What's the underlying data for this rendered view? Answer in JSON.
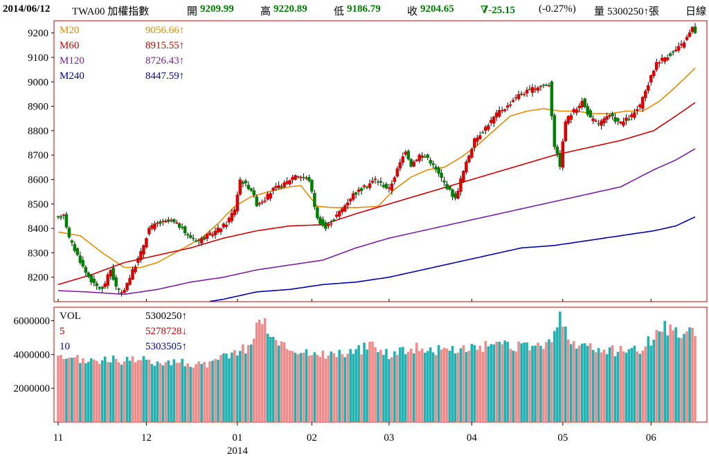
{
  "header": {
    "date": "2014/06/12",
    "symbol": "TWA00 加權指數",
    "open_label": "開",
    "open_value": "9209.99",
    "high_label": "高",
    "high_value": "9220.89",
    "low_label": "低",
    "low_value": "9186.79",
    "close_label": "收",
    "close_value": "9204.65",
    "change": "∇-25.15",
    "change_pct": "(-0.27%)",
    "volume_label": "量",
    "volume_value": "5300250↑張",
    "period": "日線"
  },
  "legend_price": [
    {
      "name": "M20",
      "value": "9056.66↑",
      "color": "#e68a00"
    },
    {
      "name": "M60",
      "value": "8915.55↑",
      "color": "#cc0000"
    },
    {
      "name": "M120",
      "value": "8726.43↑",
      "color": "#7a1fa2"
    },
    {
      "name": "M240",
      "value": "8447.59↑",
      "color": "#0000aa"
    }
  ],
  "legend_volume": [
    {
      "name": "VOL",
      "value": "5300250↑",
      "color": "#000000"
    },
    {
      "name": "5",
      "value": "5278728↓",
      "color": "#cc0000"
    },
    {
      "name": "10",
      "value": "5303505↑",
      "color": "#0000aa"
    }
  ],
  "chart_data": {
    "type": "candlestick",
    "price_axis": {
      "min": 8100,
      "max": 9250,
      "ticks": [
        "9200",
        "9100",
        "9000",
        "8900",
        "8800",
        "8700",
        "8600",
        "8500",
        "8400",
        "8300",
        "8200"
      ]
    },
    "volume_axis": {
      "min": 0,
      "max": 6800000,
      "ticks": [
        "6000000",
        "4000000",
        "2000000"
      ]
    },
    "x_ticks": [
      "11",
      "12",
      "01",
      "02",
      "03",
      "04",
      "05",
      "06"
    ],
    "x_year": "2014",
    "x_tick_index": [
      0,
      32,
      65,
      92,
      120,
      150,
      183,
      215
    ],
    "close_anchors": [
      [
        0,
        8440
      ],
      [
        2,
        8460
      ],
      [
        4,
        8360
      ],
      [
        7,
        8290
      ],
      [
        10,
        8220
      ],
      [
        13,
        8170
      ],
      [
        16,
        8150
      ],
      [
        19,
        8230
      ],
      [
        21,
        8160
      ],
      [
        23,
        8130
      ],
      [
        26,
        8200
      ],
      [
        30,
        8300
      ],
      [
        33,
        8400
      ],
      [
        36,
        8420
      ],
      [
        41,
        8430
      ],
      [
        44,
        8410
      ],
      [
        47,
        8370
      ],
      [
        51,
        8350
      ],
      [
        56,
        8380
      ],
      [
        61,
        8420
      ],
      [
        64,
        8480
      ],
      [
        66,
        8600
      ],
      [
        70,
        8560
      ],
      [
        72,
        8500
      ],
      [
        75,
        8520
      ],
      [
        78,
        8560
      ],
      [
        82,
        8580
      ],
      [
        86,
        8620
      ],
      [
        91,
        8600
      ],
      [
        94,
        8440
      ],
      [
        97,
        8400
      ],
      [
        100,
        8440
      ],
      [
        103,
        8480
      ],
      [
        107,
        8540
      ],
      [
        110,
        8560
      ],
      [
        115,
        8600
      ],
      [
        120,
        8560
      ],
      [
        123,
        8640
      ],
      [
        126,
        8720
      ],
      [
        128,
        8660
      ],
      [
        131,
        8700
      ],
      [
        134,
        8690
      ],
      [
        137,
        8640
      ],
      [
        141,
        8570
      ],
      [
        144,
        8520
      ],
      [
        146,
        8600
      ],
      [
        149,
        8700
      ],
      [
        151,
        8760
      ],
      [
        154,
        8800
      ],
      [
        157,
        8840
      ],
      [
        160,
        8880
      ],
      [
        163,
        8900
      ],
      [
        166,
        8940
      ],
      [
        170,
        8960
      ],
      [
        174,
        8980
      ],
      [
        178,
        8990
      ],
      [
        180,
        8740
      ],
      [
        182,
        8660
      ],
      [
        184,
        8840
      ],
      [
        187,
        8880
      ],
      [
        190,
        8920
      ],
      [
        193,
        8850
      ],
      [
        196,
        8830
      ],
      [
        200,
        8860
      ],
      [
        204,
        8830
      ],
      [
        208,
        8860
      ],
      [
        211,
        8900
      ],
      [
        214,
        8990
      ],
      [
        217,
        9080
      ],
      [
        220,
        9100
      ],
      [
        223,
        9120
      ],
      [
        226,
        9150
      ],
      [
        228,
        9180
      ],
      [
        230,
        9220
      ],
      [
        231,
        9205
      ]
    ],
    "ma_anchors": {
      "M20": [
        [
          0,
          8385
        ],
        [
          8,
          8370
        ],
        [
          16,
          8300
        ],
        [
          24,
          8240
        ],
        [
          30,
          8240
        ],
        [
          36,
          8260
        ],
        [
          44,
          8310
        ],
        [
          52,
          8360
        ],
        [
          58,
          8420
        ],
        [
          64,
          8490
        ],
        [
          70,
          8530
        ],
        [
          78,
          8555
        ],
        [
          84,
          8570
        ],
        [
          88,
          8575
        ],
        [
          94,
          8490
        ],
        [
          100,
          8485
        ],
        [
          108,
          8485
        ],
        [
          116,
          8490
        ],
        [
          122,
          8560
        ],
        [
          128,
          8610
        ],
        [
          134,
          8640
        ],
        [
          140,
          8650
        ],
        [
          146,
          8690
        ],
        [
          152,
          8740
        ],
        [
          158,
          8800
        ],
        [
          164,
          8860
        ],
        [
          170,
          8880
        ],
        [
          176,
          8890
        ],
        [
          182,
          8880
        ],
        [
          188,
          8880
        ],
        [
          194,
          8870
        ],
        [
          200,
          8870
        ],
        [
          206,
          8880
        ],
        [
          212,
          8880
        ],
        [
          218,
          8920
        ],
        [
          224,
          8980
        ],
        [
          231,
          9056
        ]
      ],
      "M60": [
        [
          0,
          8170
        ],
        [
          12,
          8210
        ],
        [
          24,
          8260
        ],
        [
          36,
          8290
        ],
        [
          48,
          8320
        ],
        [
          60,
          8360
        ],
        [
          72,
          8390
        ],
        [
          84,
          8410
        ],
        [
          96,
          8415
        ],
        [
          108,
          8460
        ],
        [
          120,
          8500
        ],
        [
          132,
          8540
        ],
        [
          144,
          8580
        ],
        [
          156,
          8620
        ],
        [
          168,
          8660
        ],
        [
          180,
          8700
        ],
        [
          192,
          8730
        ],
        [
          204,
          8760
        ],
        [
          216,
          8800
        ],
        [
          224,
          8860
        ],
        [
          231,
          8915
        ]
      ],
      "M120": [
        [
          0,
          8145
        ],
        [
          10,
          8140
        ],
        [
          24,
          8130
        ],
        [
          36,
          8150
        ],
        [
          48,
          8180
        ],
        [
          60,
          8200
        ],
        [
          72,
          8230
        ],
        [
          84,
          8250
        ],
        [
          96,
          8270
        ],
        [
          108,
          8320
        ],
        [
          120,
          8360
        ],
        [
          132,
          8390
        ],
        [
          144,
          8420
        ],
        [
          156,
          8450
        ],
        [
          168,
          8480
        ],
        [
          180,
          8510
        ],
        [
          192,
          8540
        ],
        [
          204,
          8570
        ],
        [
          216,
          8640
        ],
        [
          224,
          8680
        ],
        [
          231,
          8726
        ]
      ],
      "M240": [
        [
          49,
          8090
        ],
        [
          60,
          8110
        ],
        [
          72,
          8140
        ],
        [
          84,
          8150
        ],
        [
          96,
          8170
        ],
        [
          108,
          8180
        ],
        [
          120,
          8200
        ],
        [
          132,
          8230
        ],
        [
          144,
          8260
        ],
        [
          156,
          8290
        ],
        [
          168,
          8320
        ],
        [
          180,
          8330
        ],
        [
          192,
          8350
        ],
        [
          204,
          8370
        ],
        [
          216,
          8390
        ],
        [
          224,
          8410
        ],
        [
          231,
          8447
        ]
      ]
    },
    "volume_anchors": [
      [
        0,
        3700000
      ],
      [
        20,
        3650000
      ],
      [
        40,
        3600000
      ],
      [
        55,
        3350000
      ],
      [
        60,
        3900000
      ],
      [
        66,
        4300000
      ],
      [
        70,
        4500000
      ],
      [
        73,
        6300000
      ],
      [
        80,
        4600000
      ],
      [
        90,
        4100000
      ],
      [
        100,
        4000000
      ],
      [
        110,
        4300000
      ],
      [
        115,
        4600000
      ],
      [
        120,
        4000000
      ],
      [
        125,
        4300000
      ],
      [
        130,
        4400000
      ],
      [
        140,
        4200000
      ],
      [
        150,
        4400000
      ],
      [
        160,
        4500000
      ],
      [
        170,
        4400000
      ],
      [
        178,
        4600000
      ],
      [
        182,
        6300000
      ],
      [
        186,
        4600000
      ],
      [
        192,
        4400000
      ],
      [
        200,
        4200000
      ],
      [
        206,
        4300000
      ],
      [
        212,
        4400000
      ],
      [
        216,
        5000000
      ],
      [
        220,
        5600000
      ],
      [
        224,
        5300000
      ],
      [
        228,
        5400000
      ],
      [
        231,
        5300250
      ]
    ]
  }
}
